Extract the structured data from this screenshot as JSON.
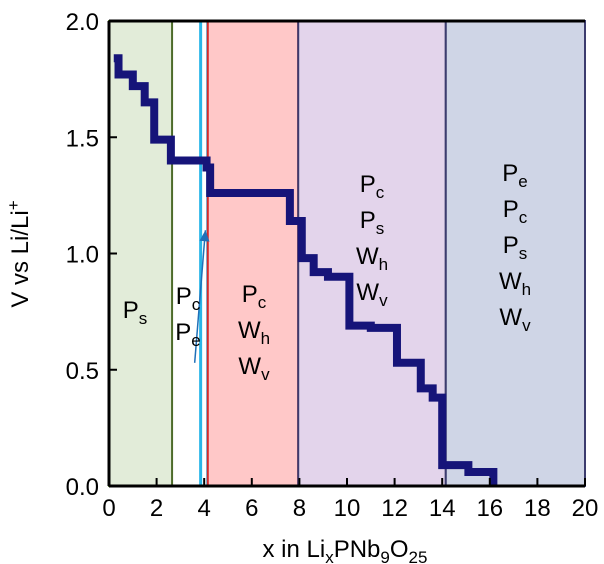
{
  "chart_data": {
    "type": "line",
    "title": "",
    "xlabel": {
      "main": "x in Li",
      "sub1": "x",
      "mid": "PNb",
      "sub2": "9",
      "mid2": "O",
      "sub3": "25"
    },
    "ylabel": {
      "main": "V vs Li/Li",
      "sup": "+"
    },
    "xlim": [
      0,
      20
    ],
    "ylim": [
      0,
      2.0
    ],
    "xticks": [
      0,
      2,
      4,
      6,
      8,
      10,
      12,
      14,
      16,
      18,
      20
    ],
    "xtick_labels": [
      "0",
      "2",
      "4",
      "6",
      "8",
      "10",
      "12",
      "14",
      "16",
      "18",
      "20"
    ],
    "yticks": [
      0.0,
      0.5,
      1.0,
      1.5,
      2.0
    ],
    "ytick_labels": [
      "0.0",
      "0.5",
      "1.0",
      "1.5",
      "2.0"
    ],
    "grid": false,
    "regions": [
      {
        "x0": 0,
        "x1": 2.65,
        "fill": "#e2ecd9",
        "stroke": "#4d6b2a",
        "labels": [
          [
            "P",
            "s"
          ]
        ]
      },
      {
        "x0": 3.85,
        "x1": 4.15,
        "fill": "#ffffff",
        "stroke": "#29b6e8",
        "labels": [
          [
            "P",
            "c"
          ],
          [
            "P",
            "e"
          ]
        ]
      },
      {
        "x0": 4.15,
        "x1": 7.95,
        "fill": "#ffc8c8",
        "stroke": "#d42a2a",
        "labels": [
          [
            "P",
            "c"
          ],
          [
            "W",
            "h"
          ],
          [
            "W",
            "v"
          ]
        ]
      },
      {
        "x0": 7.95,
        "x1": 14.15,
        "fill": "#e3d4eb",
        "stroke": "#3c3c6e",
        "labels": [
          [
            "P",
            "c"
          ],
          [
            "P",
            "s"
          ],
          [
            "W",
            "h"
          ],
          [
            "W",
            "v"
          ]
        ]
      },
      {
        "x0": 14.15,
        "x1": 20,
        "fill": "#cfd5e6",
        "stroke": "#3c3c6e",
        "labels": [
          [
            "P",
            "e"
          ],
          [
            "P",
            "c"
          ],
          [
            "P",
            "s"
          ],
          [
            "W",
            "h"
          ],
          [
            "W",
            "v"
          ]
        ]
      }
    ],
    "series": [
      {
        "color": "#161479",
        "points": [
          [
            0.2,
            1.84
          ],
          [
            0.4,
            1.84
          ],
          [
            0.4,
            1.77
          ],
          [
            1.0,
            1.77
          ],
          [
            1.0,
            1.72
          ],
          [
            1.5,
            1.72
          ],
          [
            1.5,
            1.65
          ],
          [
            1.9,
            1.65
          ],
          [
            1.9,
            1.49
          ],
          [
            2.6,
            1.49
          ],
          [
            2.6,
            1.4
          ],
          [
            4.1,
            1.4
          ],
          [
            4.1,
            1.37
          ],
          [
            4.25,
            1.37
          ],
          [
            4.25,
            1.26
          ],
          [
            7.6,
            1.26
          ],
          [
            7.6,
            1.14
          ],
          [
            8.1,
            1.14
          ],
          [
            8.1,
            0.98
          ],
          [
            8.6,
            0.98
          ],
          [
            8.6,
            0.92
          ],
          [
            9.2,
            0.92
          ],
          [
            9.2,
            0.9
          ],
          [
            10.1,
            0.9
          ],
          [
            10.1,
            0.69
          ],
          [
            11.0,
            0.69
          ],
          [
            11.0,
            0.68
          ],
          [
            12.1,
            0.68
          ],
          [
            12.1,
            0.53
          ],
          [
            13.1,
            0.53
          ],
          [
            13.1,
            0.42
          ],
          [
            13.6,
            0.42
          ],
          [
            13.6,
            0.38
          ],
          [
            14.0,
            0.38
          ],
          [
            14.0,
            0.09
          ],
          [
            15.1,
            0.09
          ],
          [
            15.1,
            0.06
          ],
          [
            16.15,
            0.06
          ],
          [
            16.15,
            0.0
          ]
        ]
      }
    ],
    "arrow": {
      "from": [
        3.6,
        0.53
      ],
      "to": [
        4.05,
        1.1
      ],
      "color": "#1f70b8"
    }
  }
}
